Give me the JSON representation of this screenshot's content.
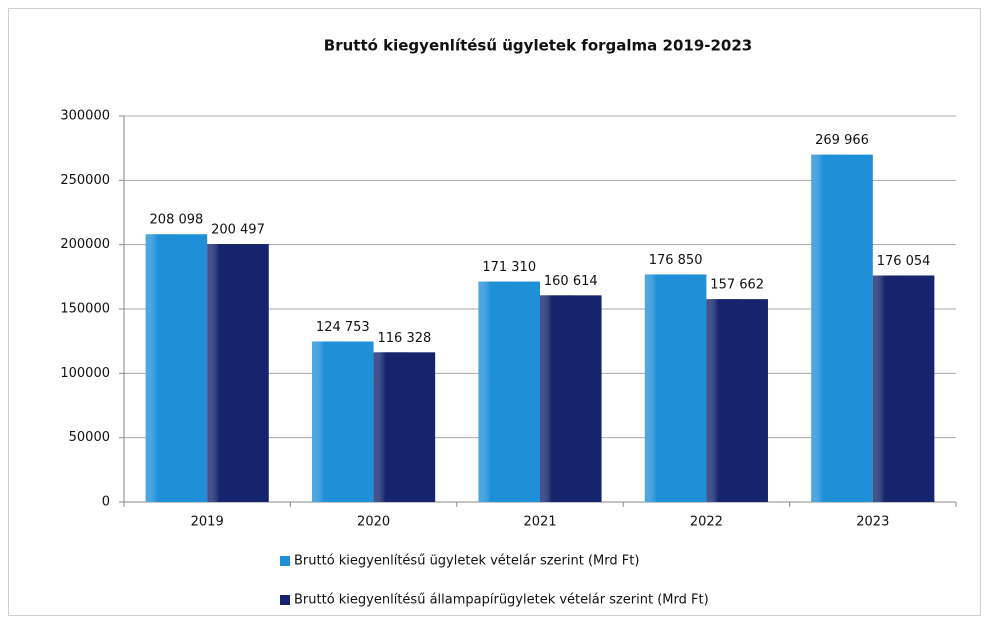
{
  "chart_data": {
    "type": "bar",
    "title": "Bruttó kiegyenlítésű ügyletek forgalma 2019-2023",
    "categories": [
      "2019",
      "2020",
      "2021",
      "2022",
      "2023"
    ],
    "series": [
      {
        "name": "Bruttó kiegyenlítésű ügyletek vételár szerint (Mrd Ft)",
        "color": "#1f8fd8",
        "values": [
          208098,
          124753,
          171310,
          176850,
          269966
        ],
        "value_labels": [
          "208 098",
          "124 753",
          "171 310",
          "176 850",
          "269 966"
        ]
      },
      {
        "name": "Bruttó kiegyenlítésű állampapírügyletek vételár szerint (Mrd Ft)",
        "color": "#15246c",
        "values": [
          200497,
          116328,
          160614,
          157662,
          176054
        ],
        "value_labels": [
          "200 497",
          "116 328",
          "160 614",
          "157 662",
          "176 054"
        ]
      }
    ],
    "ylim": [
      0,
      300000
    ],
    "yticks": [
      0,
      50000,
      100000,
      150000,
      200000,
      250000,
      300000
    ],
    "grid": true,
    "legend": "bottom"
  }
}
